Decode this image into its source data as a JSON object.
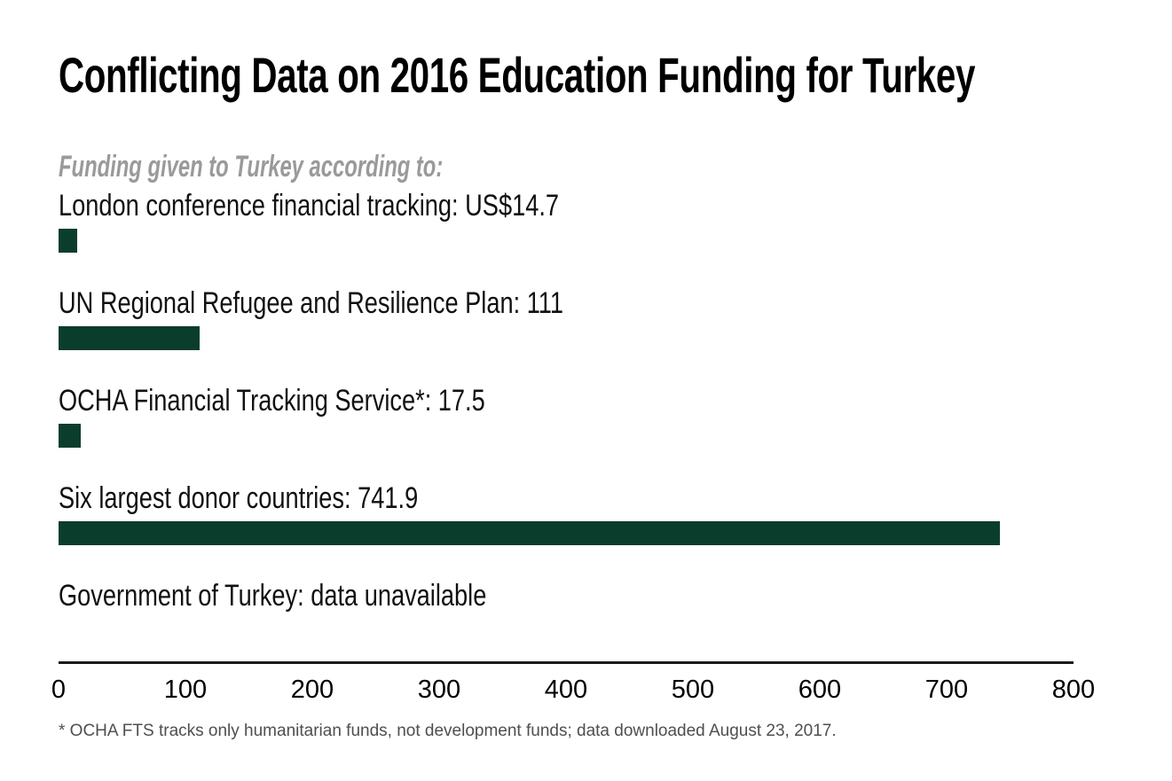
{
  "colors": {
    "background": "#ffffff",
    "bar": "#0b3d2d",
    "title_text": "#000000",
    "subtitle_text": "#9a9a9a",
    "axis_line": "#1a1a1a",
    "tick_text": "#000000",
    "footnote_text": "#4f4f4f"
  },
  "chart_data": {
    "type": "bar",
    "orientation": "horizontal",
    "title": "Conflicting Data on 2016 Education Funding for Turkey",
    "subtitle": "Funding given to Turkey according to:",
    "categories": [
      "London conference financial tracking",
      "UN Regional Refugee and Resilience Plan",
      "OCHA Financial Tracking Service*",
      "Six largest donor countries",
      "Government of Turkey"
    ],
    "values": [
      14.7,
      111,
      17.5,
      741.9,
      null
    ],
    "value_texts": [
      "US$14.7",
      "111",
      "17.5",
      "741.9",
      "data unavailable"
    ],
    "labels": [
      "London conference financial tracking: US$14.7",
      "UN Regional Refugee and Resilience Plan: 111",
      "OCHA Financial Tracking Service*: 17.5",
      "Six largest donor countries: 741.9",
      "Government of Turkey: data unavailable"
    ],
    "xlim": [
      0,
      800
    ],
    "xticks": [
      0,
      100,
      200,
      300,
      400,
      500,
      600,
      700,
      800
    ],
    "grid": false,
    "legend": "none",
    "bar_color": "#0b3d2d",
    "footnote": "* OCHA FTS tracks only humanitarian funds, not development funds; data downloaded August 23, 2017."
  }
}
